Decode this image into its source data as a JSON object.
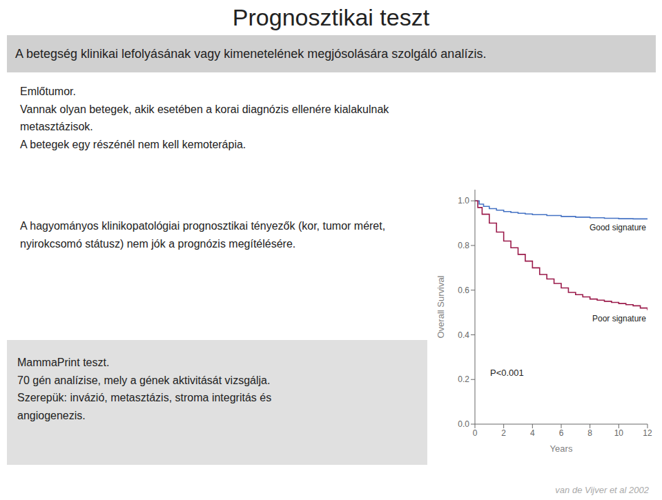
{
  "chart_data": {
    "type": "line",
    "title": "Prognosztikai teszt",
    "subtitle": "A betegség klinikai lefolyásának vagy kimenetelének megjósolására szolgáló analízis.",
    "body_text": [
      "Emlőtumor.\nVannak olyan betegek, akik esetében a korai diagnózis ellenére kialakulnak\nmetasztázisok.\nA betegek egy részénél nem kell kemoterápia.",
      "A hagyományos klinikopatológiai prognosztikai tényezők (kor, tumor méret,\nnyirokcsomó státusz) nem jók a prognózis megítélésére.",
      "MammaPrint teszt.\n70 gén analízise, mely a gének aktivitását vizsgálja.\nSzerepük: invázió, metasztázis, stroma integritás és\nangiogenezis."
    ],
    "footnote": "van de Vijver et al 2002",
    "xlabel": "Years",
    "ylabel": "Overall Survival",
    "line_style": "step",
    "grid": false,
    "annotations": [
      "P<0.001"
    ],
    "xlim": [
      0,
      12
    ],
    "xticks": [
      0,
      2,
      4,
      6,
      8,
      10,
      12
    ],
    "ylim": [
      0.0,
      1.05
    ],
    "yticks": [
      {
        "value": 0.0,
        "label": "0.0"
      },
      0.2,
      0.4,
      0.6,
      0.8,
      {
        "value": 1.0,
        "label": "1.0"
      }
    ],
    "series": [
      {
        "name": "Good signature",
        "color": "#4472c4",
        "x": [
          0,
          0.3,
          0.6,
          1.0,
          1.5,
          2.0,
          2.5,
          3.0,
          3.5,
          4.0,
          5.0,
          6.0,
          7.0,
          8.0,
          9.0,
          10.0,
          11.0,
          12.0
        ],
        "values": [
          1.0,
          0.985,
          0.975,
          0.965,
          0.958,
          0.952,
          0.948,
          0.944,
          0.941,
          0.938,
          0.934,
          0.93,
          0.927,
          0.924,
          0.922,
          0.92,
          0.919,
          0.918
        ]
      },
      {
        "name": "Poor signature",
        "color": "#9b1b4b",
        "x": [
          0,
          0.2,
          0.5,
          1.0,
          1.5,
          2.0,
          2.5,
          3.0,
          3.5,
          4.0,
          4.5,
          5.0,
          5.5,
          6.0,
          6.5,
          7.0,
          7.5,
          8.0,
          8.5,
          9.0,
          9.5,
          10.0,
          10.5,
          11.0,
          11.5,
          12.0
        ],
        "values": [
          1.0,
          0.97,
          0.94,
          0.9,
          0.86,
          0.82,
          0.79,
          0.76,
          0.73,
          0.7,
          0.67,
          0.65,
          0.63,
          0.61,
          0.59,
          0.58,
          0.57,
          0.56,
          0.555,
          0.55,
          0.545,
          0.54,
          0.535,
          0.53,
          0.52,
          0.51
        ]
      }
    ]
  }
}
